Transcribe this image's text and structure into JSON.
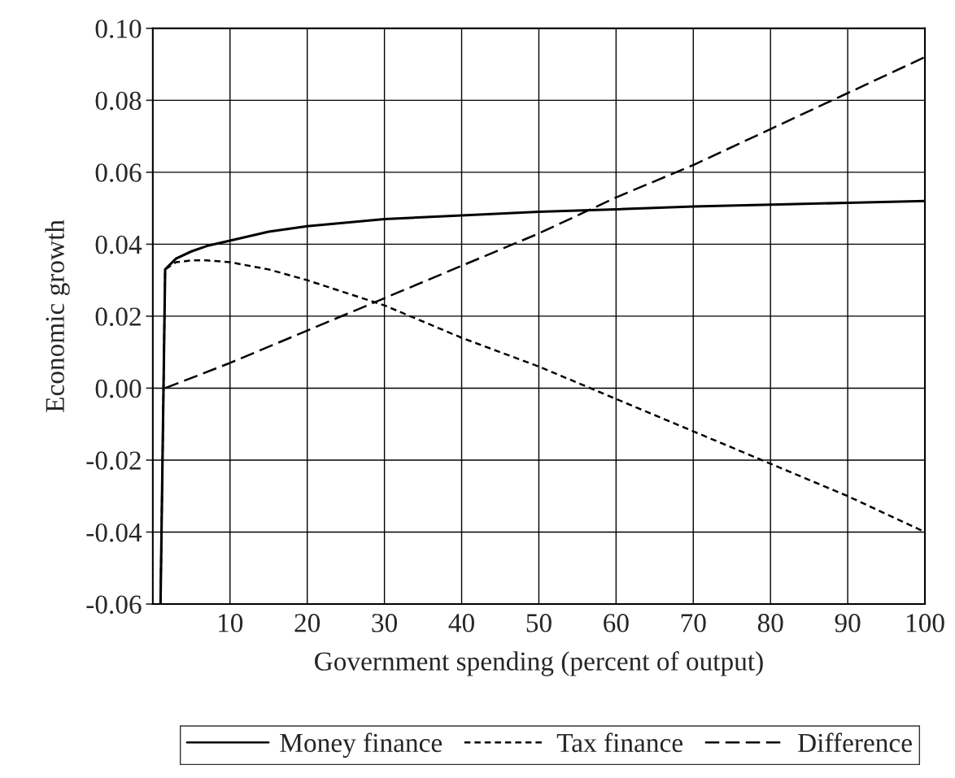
{
  "chart_data": {
    "type": "line",
    "xlabel": "Government spending (percent of output)",
    "ylabel": "Economic growth",
    "xlim": [
      0,
      100
    ],
    "ylim": [
      -0.06,
      0.1
    ],
    "xticks": [
      10,
      20,
      30,
      40,
      50,
      60,
      70,
      80,
      90,
      100
    ],
    "yticks": [
      {
        "value": -0.06,
        "label": "-0.06"
      },
      {
        "value": -0.04,
        "label": "-0.04"
      },
      {
        "value": -0.02,
        "label": "-0.02"
      },
      {
        "value": 0,
        "label": "0.00"
      },
      {
        "value": 0.02,
        "label": "0.02"
      },
      {
        "value": 0.04,
        "label": "0.04"
      },
      {
        "value": 0.06,
        "label": "0.06"
      },
      {
        "value": 0.08,
        "label": "0.08"
      },
      {
        "value": 0.1,
        "label": "0.10"
      }
    ],
    "grid": true,
    "legend": "bottom",
    "marker": "none",
    "series": [
      {
        "name": "Money finance",
        "color": "#000000",
        "line_style": "solid",
        "x": [
          1,
          1.6,
          3,
          5,
          7,
          10,
          15,
          20,
          30,
          40,
          50,
          60,
          70,
          80,
          90,
          100
        ],
        "values": [
          -0.06,
          0.033,
          0.036,
          0.038,
          0.0395,
          0.041,
          0.0435,
          0.045,
          0.047,
          0.048,
          0.049,
          0.0497,
          0.0505,
          0.051,
          0.0515,
          0.052
        ]
      },
      {
        "name": "Tax finance",
        "color": "#000000",
        "line_style": "dotted",
        "x": [
          1,
          1.6,
          3,
          5,
          7,
          10,
          15,
          20,
          30,
          40,
          50,
          60,
          70,
          80,
          90,
          100
        ],
        "values": [
          -0.06,
          0.033,
          0.035,
          0.0355,
          0.0355,
          0.035,
          0.033,
          0.03,
          0.023,
          0.014,
          0.006,
          -0.003,
          -0.012,
          -0.021,
          -0.03,
          -0.04
        ]
      },
      {
        "name": "Difference",
        "color": "#000000",
        "line_style": "dashed",
        "x": [
          1.6,
          10,
          20,
          30,
          40,
          50,
          60,
          70,
          80,
          90,
          100
        ],
        "values": [
          0.0,
          0.007,
          0.016,
          0.025,
          0.034,
          0.043,
          0.053,
          0.062,
          0.072,
          0.082,
          0.092
        ]
      }
    ]
  }
}
